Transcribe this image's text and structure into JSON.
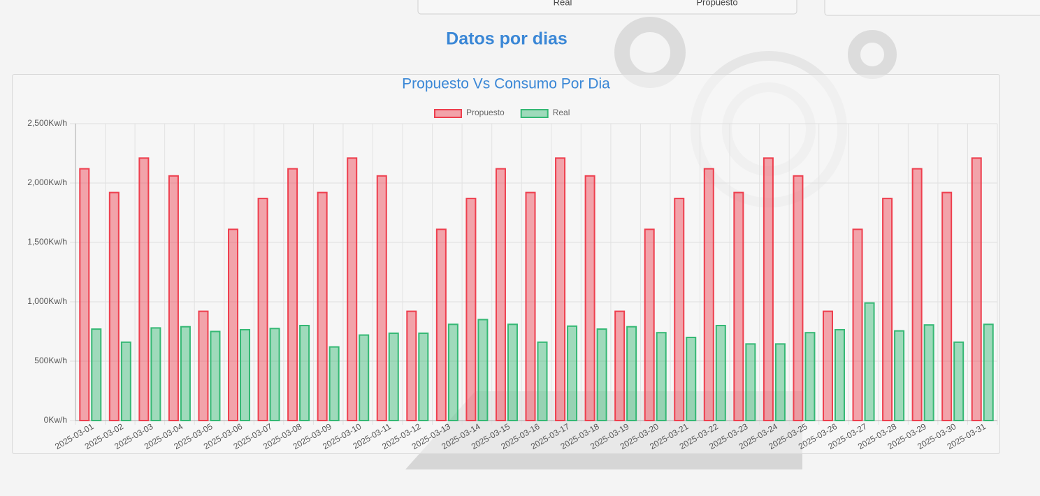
{
  "header": {
    "tabs": [
      "Real",
      "Propuesto"
    ],
    "section_title": "Datos por dias"
  },
  "chart_data": {
    "type": "bar",
    "title": "Propuesto Vs Consumo Por Dia",
    "categories": [
      "2025-03-01",
      "2025-03-02",
      "2025-03-03",
      "2025-03-04",
      "2025-03-05",
      "2025-03-06",
      "2025-03-07",
      "2025-03-08",
      "2025-03-09",
      "2025-03-10",
      "2025-03-11",
      "2025-03-12",
      "2025-03-13",
      "2025-03-14",
      "2025-03-15",
      "2025-03-16",
      "2025-03-17",
      "2025-03-18",
      "2025-03-19",
      "2025-03-20",
      "2025-03-21",
      "2025-03-22",
      "2025-03-23",
      "2025-03-24",
      "2025-03-25",
      "2025-03-26",
      "2025-03-27",
      "2025-03-28",
      "2025-03-29",
      "2025-03-30",
      "2025-03-31"
    ],
    "series": [
      {
        "name": "Propuesto",
        "color": "#ee3f4e",
        "values": [
          2120,
          1920,
          2210,
          2060,
          920,
          1610,
          1870,
          2120,
          1920,
          2210,
          2060,
          920,
          1610,
          1870,
          2120,
          1920,
          2210,
          2060,
          920,
          1610,
          1870,
          2120,
          1920,
          2210,
          2060,
          920,
          1610,
          1870,
          2120,
          1920,
          2210
        ]
      },
      {
        "name": "Real",
        "color": "#35b874",
        "values": [
          770,
          660,
          780,
          790,
          750,
          765,
          775,
          800,
          620,
          720,
          735,
          735,
          810,
          850,
          810,
          660,
          795,
          770,
          790,
          740,
          700,
          800,
          645,
          645,
          740,
          765,
          990,
          755,
          805,
          660,
          810
        ]
      }
    ],
    "ylim": [
      0,
      2500
    ],
    "yticks": [
      {
        "value": 0,
        "label": "0Kw/h"
      },
      {
        "value": 500,
        "label": "500Kw/h"
      },
      {
        "value": 1000,
        "label": "1,000Kw/h"
      },
      {
        "value": 1500,
        "label": "1,500Kw/h"
      },
      {
        "value": 2000,
        "label": "2,000Kw/h"
      },
      {
        "value": 2500,
        "label": "2,500Kw/h"
      }
    ],
    "grid": true,
    "legend": "top"
  }
}
